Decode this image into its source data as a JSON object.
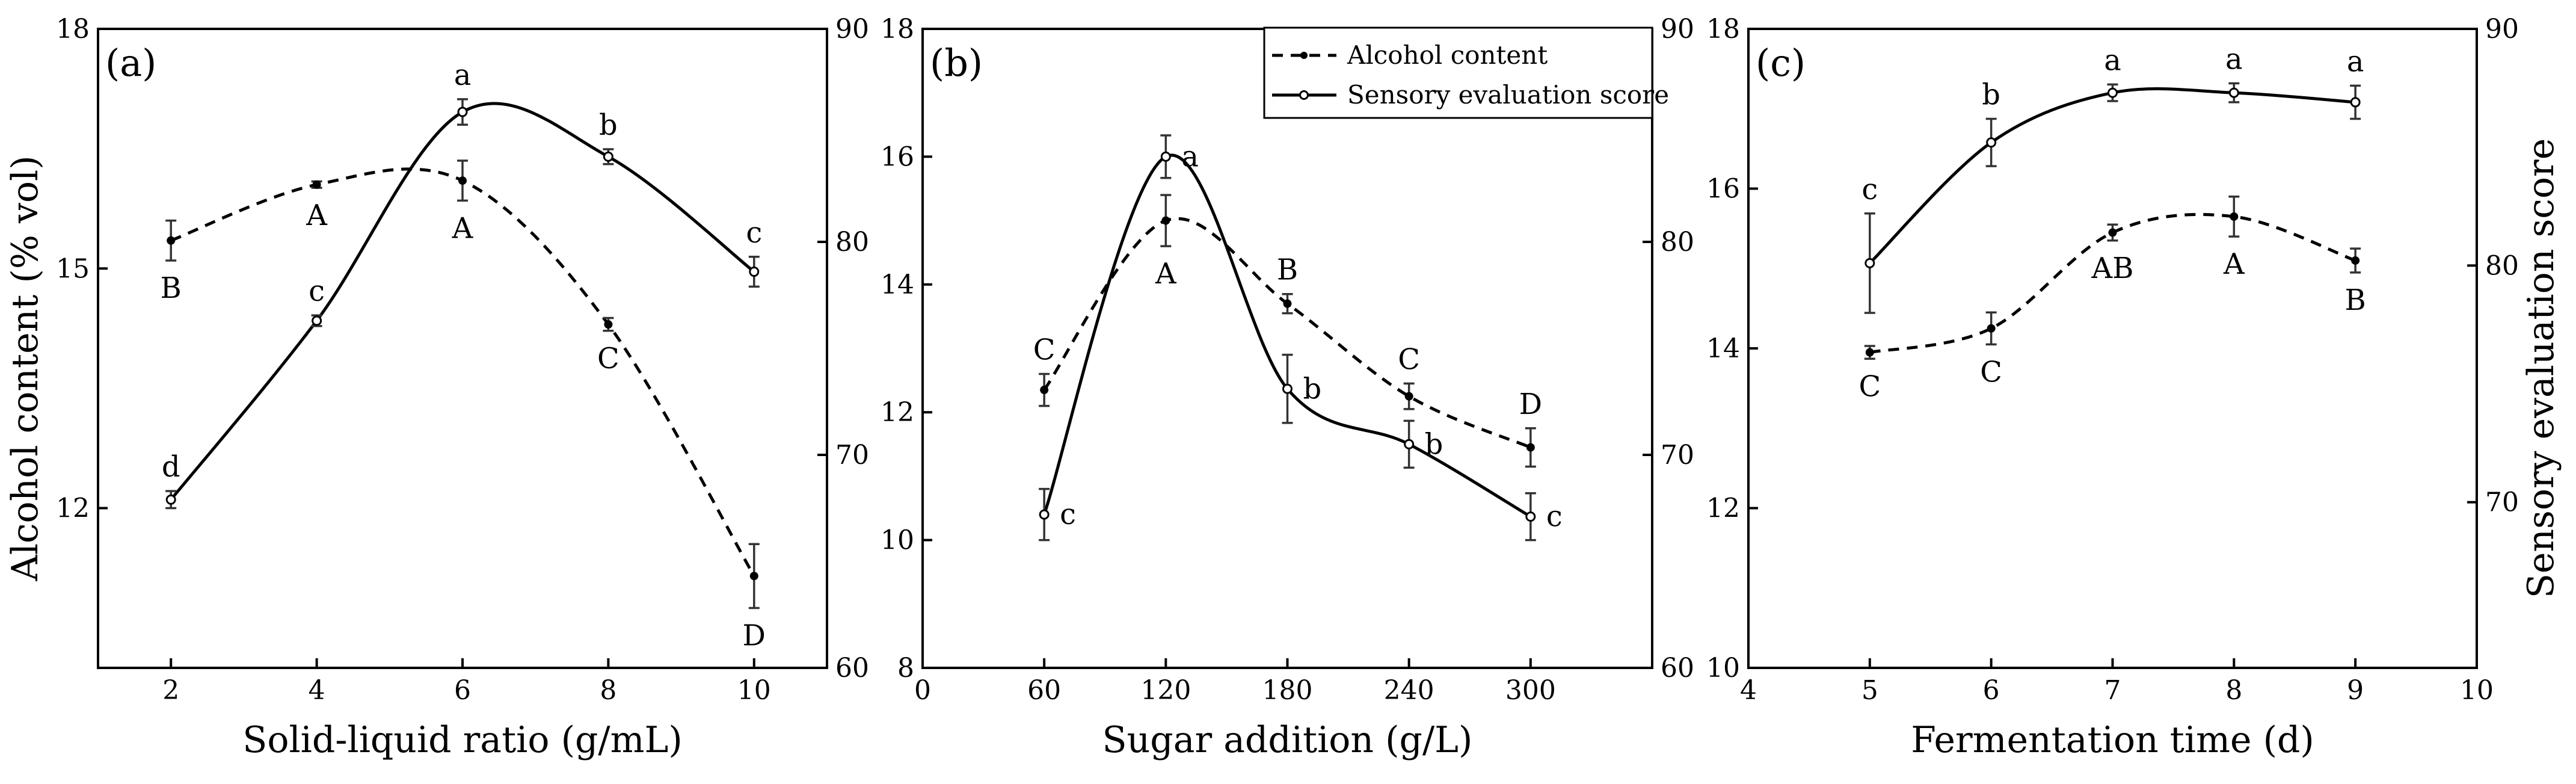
{
  "y_left_label": "Alcohol content (% vol)",
  "y_right_label": "Sensory evaluation score",
  "legend": {
    "alcohol": "Alcohol content",
    "sensory": "Sensory evaluation score"
  },
  "chart_data": [
    {
      "type": "line",
      "panel_label": "(a)",
      "xlabel": "Solid-liquid ratio (g/mL)",
      "x": [
        2,
        4,
        6,
        8,
        10
      ],
      "x_ticks": [
        2,
        4,
        6,
        8,
        10
      ],
      "xlim": [
        1,
        11
      ],
      "y_left_lim": [
        10,
        18
      ],
      "y_left_ticks": [
        12,
        15,
        18
      ],
      "y_right_lim": [
        60,
        90
      ],
      "y_right_ticks": [
        60,
        70,
        80,
        90
      ],
      "series": [
        {
          "name": "Alcohol content",
          "axis": "left",
          "values": [
            15.35,
            16.05,
            16.1,
            14.3,
            11.15
          ],
          "err": [
            0.25,
            0.04,
            0.25,
            0.08,
            0.4
          ],
          "sig": [
            "B",
            "A",
            "A",
            "C",
            "D"
          ]
        },
        {
          "name": "Sensory evaluation score",
          "axis": "right",
          "values": [
            67.9,
            76.3,
            86.1,
            84.0,
            78.6
          ],
          "err": [
            0.4,
            0.25,
            0.6,
            0.35,
            0.7
          ],
          "sig": [
            "d",
            "c",
            "a",
            "b",
            "c"
          ]
        }
      ]
    },
    {
      "type": "line",
      "panel_label": "(b)",
      "xlabel": "Sugar addition (g/L)",
      "x": [
        60,
        120,
        180,
        240,
        300
      ],
      "x_ticks": [
        0,
        60,
        120,
        180,
        240,
        300
      ],
      "xlim": [
        0,
        360
      ],
      "y_left_lim": [
        8,
        18
      ],
      "y_left_ticks": [
        8,
        10,
        12,
        14,
        16,
        18
      ],
      "y_right_lim": [
        60,
        90
      ],
      "y_right_ticks": [
        60,
        70,
        80,
        90
      ],
      "series": [
        {
          "name": "Alcohol content",
          "axis": "left",
          "values": [
            12.35,
            15.0,
            13.7,
            12.25,
            11.45
          ],
          "err": [
            0.25,
            0.4,
            0.15,
            0.2,
            0.3
          ],
          "sig": [
            "C",
            "A",
            "B",
            "C",
            "D"
          ]
        },
        {
          "name": "Sensory evaluation score",
          "axis": "right",
          "values": [
            67.2,
            84.0,
            73.1,
            70.5,
            67.1
          ],
          "err": [
            1.2,
            1.0,
            1.6,
            1.1,
            1.1
          ],
          "sig": [
            "c",
            "a",
            "b",
            "b",
            "c"
          ]
        }
      ]
    },
    {
      "type": "line",
      "panel_label": "(c)",
      "xlabel": "Fermentation time (d)",
      "x": [
        5,
        6,
        7,
        8,
        9
      ],
      "x_ticks": [
        4,
        5,
        6,
        7,
        8,
        9,
        10
      ],
      "xlim": [
        4,
        10
      ],
      "y_left_lim": [
        10,
        18
      ],
      "y_left_ticks": [
        10,
        12,
        14,
        16,
        18
      ],
      "y_right_lim": [
        63,
        90
      ],
      "y_right_ticks": [
        70,
        80,
        90
      ],
      "series": [
        {
          "name": "Alcohol content",
          "axis": "left",
          "values": [
            13.95,
            14.25,
            15.45,
            15.65,
            15.1
          ],
          "err": [
            0.08,
            0.2,
            0.1,
            0.25,
            0.15
          ],
          "sig": [
            "C",
            "C",
            "AB",
            "A",
            "B"
          ]
        },
        {
          "name": "Sensory evaluation score",
          "axis": "right",
          "values": [
            80.1,
            85.2,
            87.3,
            87.3,
            86.9
          ],
          "err": [
            2.1,
            1.0,
            0.35,
            0.4,
            0.7
          ],
          "sig": [
            "c",
            "b",
            "a",
            "a",
            "a"
          ]
        }
      ]
    }
  ]
}
